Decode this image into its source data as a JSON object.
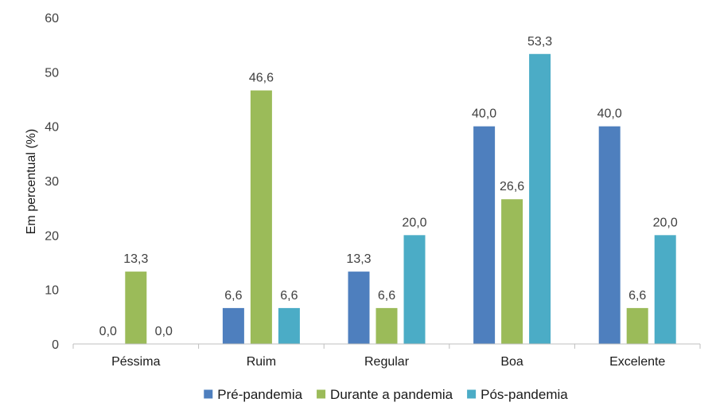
{
  "chart_data": {
    "type": "bar",
    "title": "",
    "xlabel": "",
    "ylabel": "Em percentual (%)",
    "ylim": [
      0,
      60
    ],
    "yticks": [
      "0",
      "10",
      "20",
      "30",
      "40",
      "50",
      "60"
    ],
    "grid": false,
    "legend_position": "bottom",
    "categories": [
      "Péssima",
      "Ruim",
      "Regular",
      "Boa",
      "Excelente"
    ],
    "series": [
      {
        "name": "Pré-pandemia",
        "color": "#4e7fbe",
        "values": [
          0.0,
          6.6,
          13.3,
          40.0,
          40.0
        ],
        "labels": [
          "0,0",
          "6,6",
          "13,3",
          "40,0",
          "40,0"
        ]
      },
      {
        "name": "Durante a pandemia",
        "color": "#9bbb59",
        "values": [
          13.3,
          46.6,
          6.6,
          26.6,
          6.6
        ],
        "labels": [
          "13,3",
          "46,6",
          "6,6",
          "26,6",
          "6,6"
        ]
      },
      {
        "name": "Pós-pandemia",
        "color": "#4bacc6",
        "values": [
          0.0,
          6.6,
          20.0,
          53.3,
          20.0
        ],
        "labels": [
          "0,0",
          "6,6",
          "20,0",
          "53,3",
          "20,0"
        ]
      }
    ]
  }
}
